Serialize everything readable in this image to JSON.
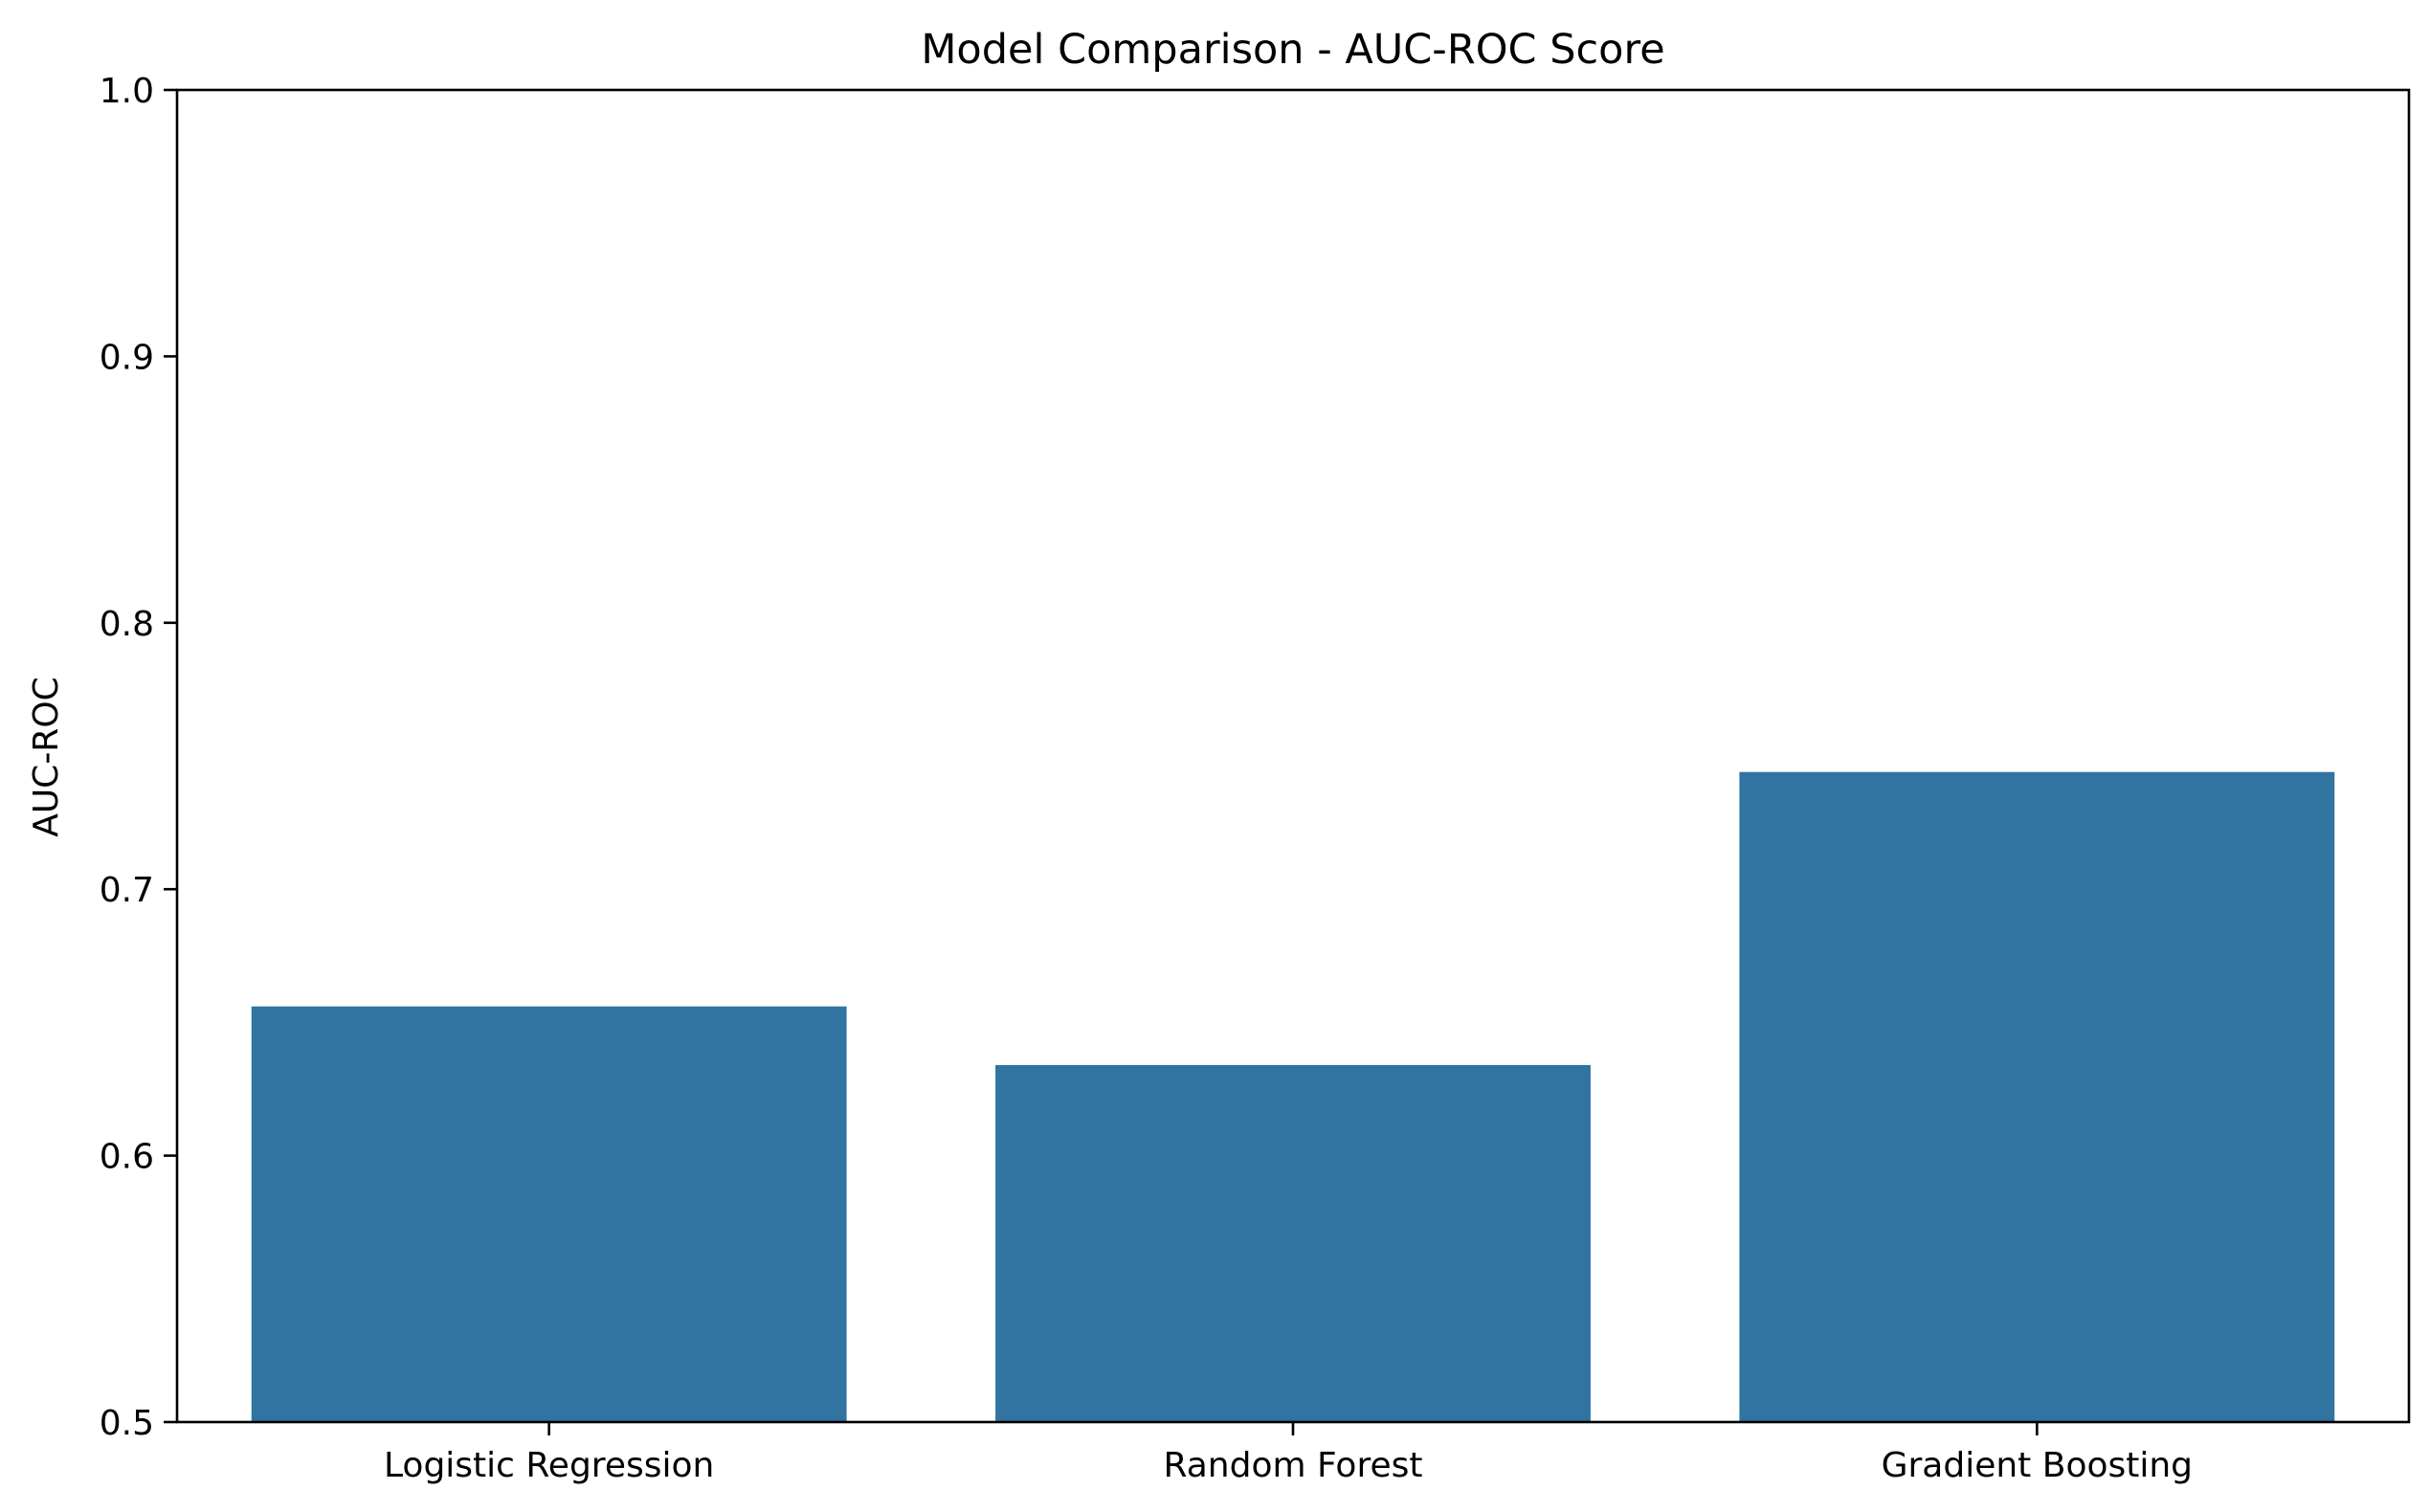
{
  "chart_data": {
    "type": "bar",
    "title": "Model Comparison - AUC-ROC Score",
    "xlabel": "",
    "ylabel": "AUC-ROC",
    "categories": [
      "Logistic Regression",
      "Random Forest",
      "Gradient Boosting"
    ],
    "values": [
      0.656,
      0.634,
      0.744
    ],
    "ylim": [
      0.5,
      1.0
    ],
    "yticks": [
      0.5,
      0.6,
      0.7,
      0.8,
      0.9,
      1.0
    ],
    "ytick_labels": [
      "0.5",
      "0.6",
      "0.7",
      "0.8",
      "0.9",
      "1.0"
    ],
    "grid": false,
    "bar_color": "#3274a1",
    "axis_color": "#000000"
  }
}
